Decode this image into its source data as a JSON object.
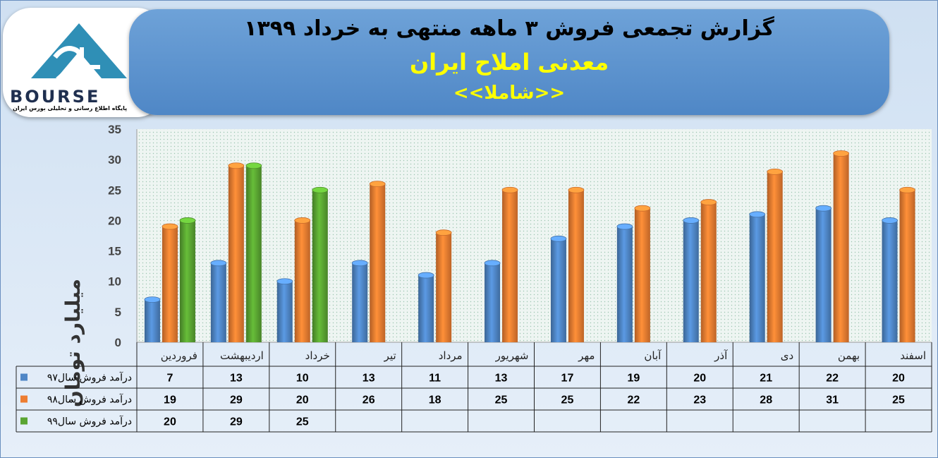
{
  "header": {
    "title": "گزارش تجمعی فروش  ۳ ماهه منتهی به خرداد ۱۳۹۹",
    "subtitle": "معدنی املاح ایران",
    "subtitle2": "<<شاملا>>"
  },
  "logo": {
    "word": "BOURSE",
    "tagline": "پایگاه اطلاع رسانی و تحلیلی بورس ایران"
  },
  "colors": {
    "series97": "#4f86c6",
    "series98": "#ed7d31",
    "series99": "#5aa532",
    "plot_bg": "#eef5f2"
  },
  "chart_data": {
    "type": "bar",
    "ylabel": "میلیارد تومان",
    "ylim": [
      0,
      35
    ],
    "yticks": [
      0,
      5,
      10,
      15,
      20,
      25,
      30,
      35
    ],
    "grid": false,
    "legend": "data-table",
    "categories": [
      "فروردین",
      "اردیبهشت",
      "خرداد",
      "تیر",
      "مرداد",
      "شهریور",
      "مهر",
      "آبان",
      "آذر",
      "دی",
      "بهمن",
      "اسفند"
    ],
    "series": [
      {
        "name": "درآمد فروش سال۹۷",
        "values": [
          7,
          13,
          10,
          13,
          11,
          13,
          17,
          19,
          20,
          21,
          22,
          20
        ]
      },
      {
        "name": "درآمد فروش سال۹۸",
        "values": [
          19,
          29,
          20,
          26,
          18,
          25,
          25,
          22,
          23,
          28,
          31,
          25
        ]
      },
      {
        "name": "درآمد فروش سال۹۹",
        "values": [
          20,
          29,
          25,
          null,
          null,
          null,
          null,
          null,
          null,
          null,
          null,
          null
        ]
      }
    ]
  }
}
